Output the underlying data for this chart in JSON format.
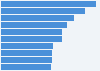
{
  "values": [
    800,
    708,
    619,
    563,
    519,
    516,
    439,
    434,
    431,
    421
  ],
  "bar_color": "#4a90d9",
  "background_color": "#f0f4f8",
  "figsize": [
    1.0,
    0.71
  ],
  "dpi": 100
}
